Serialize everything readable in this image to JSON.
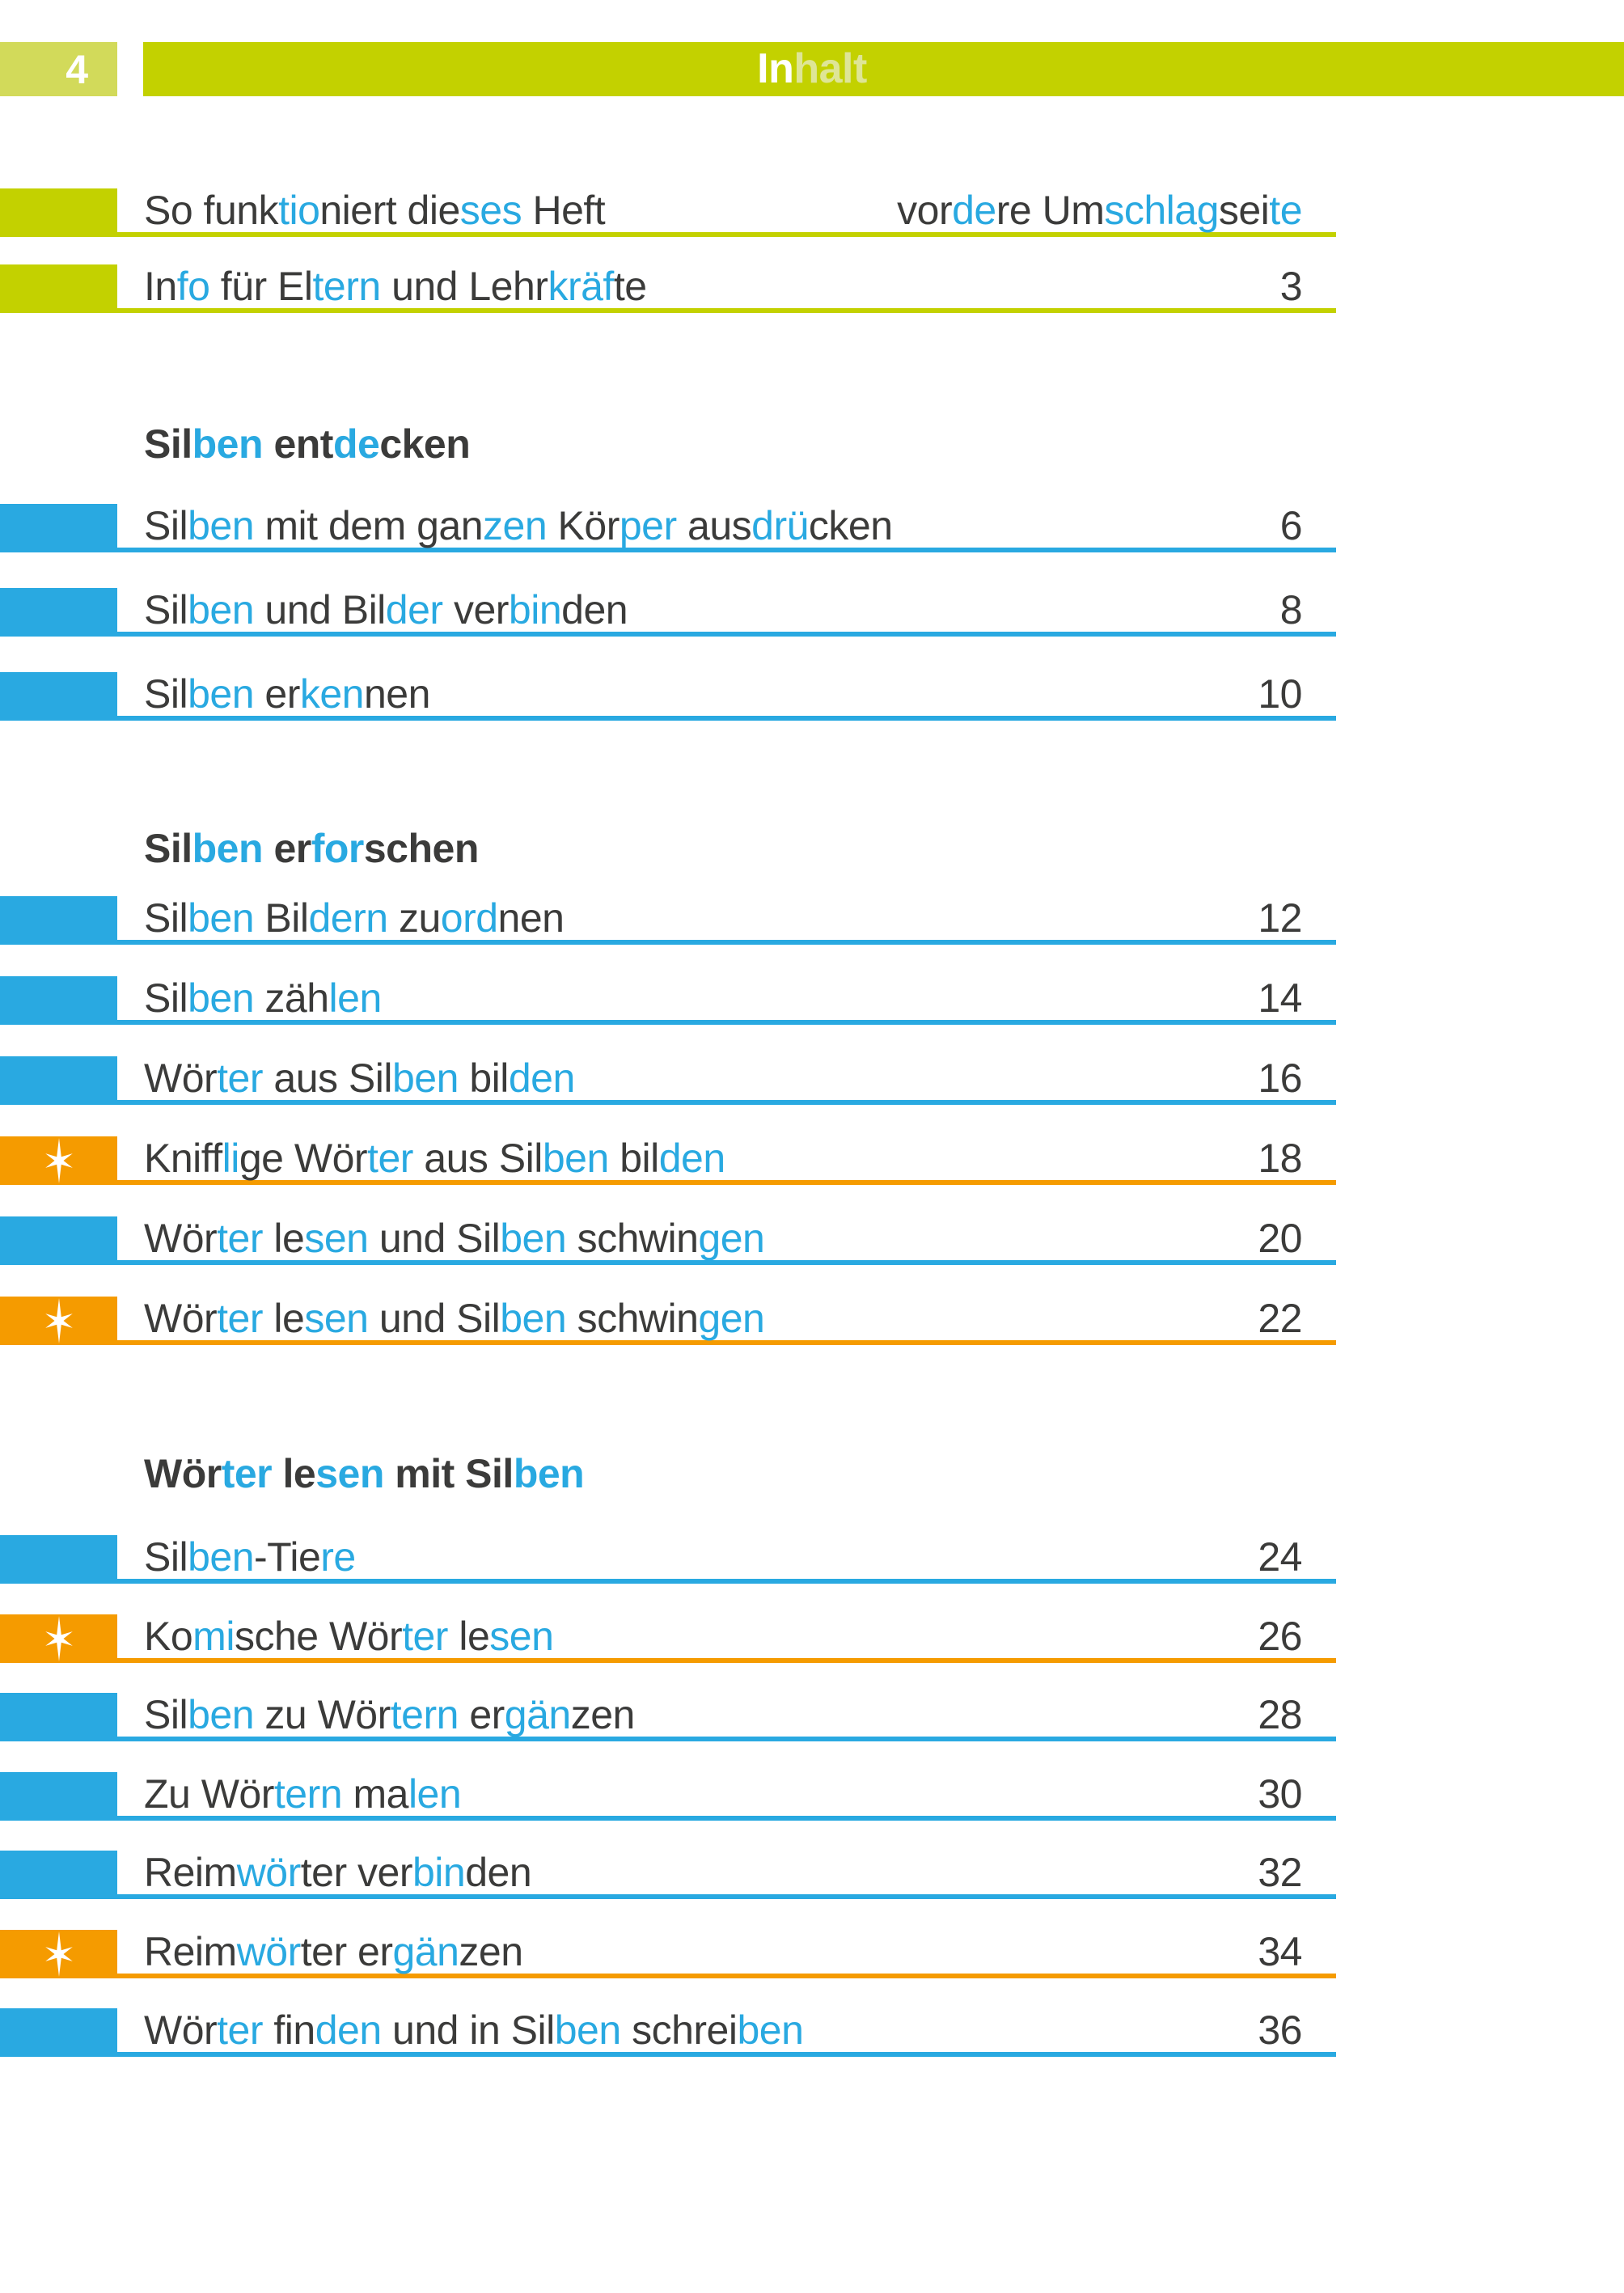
{
  "page": {
    "number": "4"
  },
  "header": {
    "title": [
      {
        "t": "In",
        "c": "white"
      },
      {
        "t": "halt",
        "c": "pale"
      }
    ]
  },
  "colors": {
    "green": "#c3d100",
    "green_light": "#d2da5a",
    "green_pale": "#dee596",
    "blue": "#29a9e1",
    "orange": "#f59b00",
    "dark": "#3b3b3a"
  },
  "icons": {
    "star": "six-point-sparkle-star"
  },
  "toc": {
    "intro_rows": [
      {
        "tab": "green",
        "star": false,
        "title": [
          {
            "t": "So funk",
            "c": "d"
          },
          {
            "t": "tio",
            "c": "b"
          },
          {
            "t": "niert die",
            "c": "d"
          },
          {
            "t": "ses",
            "c": "b"
          },
          {
            "t": " Heft",
            "c": "d"
          }
        ],
        "page": [
          {
            "t": "vor",
            "c": "d"
          },
          {
            "t": "de",
            "c": "b"
          },
          {
            "t": "re Um",
            "c": "d"
          },
          {
            "t": "schlag",
            "c": "b"
          },
          {
            "t": "sei",
            "c": "d"
          },
          {
            "t": "te",
            "c": "b"
          }
        ]
      },
      {
        "tab": "green",
        "star": false,
        "title": [
          {
            "t": "In",
            "c": "d"
          },
          {
            "t": "fo",
            "c": "b"
          },
          {
            "t": " für El",
            "c": "d"
          },
          {
            "t": "tern",
            "c": "b"
          },
          {
            "t": " und Lehr",
            "c": "d"
          },
          {
            "t": "kräf",
            "c": "b"
          },
          {
            "t": "te",
            "c": "d"
          }
        ],
        "page": [
          {
            "t": "3",
            "c": "d"
          }
        ]
      }
    ],
    "sections": [
      {
        "heading": [
          {
            "t": "Sil",
            "c": "d"
          },
          {
            "t": "ben",
            "c": "b"
          },
          {
            "t": " ent",
            "c": "d"
          },
          {
            "t": "de",
            "c": "b"
          },
          {
            "t": "cken",
            "c": "d"
          }
        ],
        "rows": [
          {
            "tab": "blue",
            "star": false,
            "title": [
              {
                "t": "Sil",
                "c": "d"
              },
              {
                "t": "ben",
                "c": "b"
              },
              {
                "t": " mit dem gan",
                "c": "d"
              },
              {
                "t": "zen",
                "c": "b"
              },
              {
                "t": " Kör",
                "c": "d"
              },
              {
                "t": "per",
                "c": "b"
              },
              {
                "t": " aus",
                "c": "d"
              },
              {
                "t": "drü",
                "c": "b"
              },
              {
                "t": "cken",
                "c": "d"
              }
            ],
            "page": [
              {
                "t": "6",
                "c": "d"
              }
            ]
          },
          {
            "tab": "blue",
            "star": false,
            "title": [
              {
                "t": "Sil",
                "c": "d"
              },
              {
                "t": "ben",
                "c": "b"
              },
              {
                "t": " und Bil",
                "c": "d"
              },
              {
                "t": "der",
                "c": "b"
              },
              {
                "t": " ver",
                "c": "d"
              },
              {
                "t": "bin",
                "c": "b"
              },
              {
                "t": "den",
                "c": "d"
              }
            ],
            "page": [
              {
                "t": "8",
                "c": "d"
              }
            ]
          },
          {
            "tab": "blue",
            "star": false,
            "title": [
              {
                "t": "Sil",
                "c": "d"
              },
              {
                "t": "ben",
                "c": "b"
              },
              {
                "t": " er",
                "c": "d"
              },
              {
                "t": "ken",
                "c": "b"
              },
              {
                "t": "nen",
                "c": "d"
              }
            ],
            "page": [
              {
                "t": "10",
                "c": "d"
              }
            ]
          }
        ]
      },
      {
        "heading": [
          {
            "t": "Sil",
            "c": "d"
          },
          {
            "t": "ben",
            "c": "b"
          },
          {
            "t": " er",
            "c": "d"
          },
          {
            "t": "for",
            "c": "b"
          },
          {
            "t": "schen",
            "c": "d"
          }
        ],
        "rows": [
          {
            "tab": "blue",
            "star": false,
            "title": [
              {
                "t": "Sil",
                "c": "d"
              },
              {
                "t": "ben",
                "c": "b"
              },
              {
                "t": " Bil",
                "c": "d"
              },
              {
                "t": "dern",
                "c": "b"
              },
              {
                "t": " zu",
                "c": "d"
              },
              {
                "t": "ord",
                "c": "b"
              },
              {
                "t": "nen",
                "c": "d"
              }
            ],
            "page": [
              {
                "t": "12",
                "c": "d"
              }
            ]
          },
          {
            "tab": "blue",
            "star": false,
            "title": [
              {
                "t": "Sil",
                "c": "d"
              },
              {
                "t": "ben",
                "c": "b"
              },
              {
                "t": " zäh",
                "c": "d"
              },
              {
                "t": "len",
                "c": "b"
              }
            ],
            "page": [
              {
                "t": "14",
                "c": "d"
              }
            ]
          },
          {
            "tab": "blue",
            "star": false,
            "title": [
              {
                "t": "Wör",
                "c": "d"
              },
              {
                "t": "ter",
                "c": "b"
              },
              {
                "t": " aus Sil",
                "c": "d"
              },
              {
                "t": "ben",
                "c": "b"
              },
              {
                "t": " bil",
                "c": "d"
              },
              {
                "t": "den",
                "c": "b"
              }
            ],
            "page": [
              {
                "t": "16",
                "c": "d"
              }
            ]
          },
          {
            "tab": "orange",
            "star": true,
            "title": [
              {
                "t": "Kniff",
                "c": "d"
              },
              {
                "t": "li",
                "c": "b"
              },
              {
                "t": "ge Wör",
                "c": "d"
              },
              {
                "t": "ter",
                "c": "b"
              },
              {
                "t": " aus Sil",
                "c": "d"
              },
              {
                "t": "ben",
                "c": "b"
              },
              {
                "t": " bil",
                "c": "d"
              },
              {
                "t": "den",
                "c": "b"
              }
            ],
            "page": [
              {
                "t": "18",
                "c": "d"
              }
            ]
          },
          {
            "tab": "blue",
            "star": false,
            "title": [
              {
                "t": "Wör",
                "c": "d"
              },
              {
                "t": "ter",
                "c": "b"
              },
              {
                "t": " le",
                "c": "d"
              },
              {
                "t": "sen",
                "c": "b"
              },
              {
                "t": " und Sil",
                "c": "d"
              },
              {
                "t": "ben",
                "c": "b"
              },
              {
                "t": " schwin",
                "c": "d"
              },
              {
                "t": "gen",
                "c": "b"
              }
            ],
            "page": [
              {
                "t": "20",
                "c": "d"
              }
            ]
          },
          {
            "tab": "orange",
            "star": true,
            "title": [
              {
                "t": "Wör",
                "c": "d"
              },
              {
                "t": "ter",
                "c": "b"
              },
              {
                "t": " le",
                "c": "d"
              },
              {
                "t": "sen",
                "c": "b"
              },
              {
                "t": " und Sil",
                "c": "d"
              },
              {
                "t": "ben",
                "c": "b"
              },
              {
                "t": " schwin",
                "c": "d"
              },
              {
                "t": "gen",
                "c": "b"
              }
            ],
            "page": [
              {
                "t": "22",
                "c": "d"
              }
            ]
          }
        ]
      },
      {
        "heading": [
          {
            "t": "Wör",
            "c": "d"
          },
          {
            "t": "ter",
            "c": "b"
          },
          {
            "t": " le",
            "c": "d"
          },
          {
            "t": "sen",
            "c": "b"
          },
          {
            "t": " mit Sil",
            "c": "d"
          },
          {
            "t": "ben",
            "c": "b"
          }
        ],
        "rows": [
          {
            "tab": "blue",
            "star": false,
            "title": [
              {
                "t": "Sil",
                "c": "d"
              },
              {
                "t": "ben",
                "c": "b"
              },
              {
                "t": "-Tie",
                "c": "d"
              },
              {
                "t": "re",
                "c": "b"
              }
            ],
            "page": [
              {
                "t": "24",
                "c": "d"
              }
            ]
          },
          {
            "tab": "orange",
            "star": true,
            "title": [
              {
                "t": "Ko",
                "c": "d"
              },
              {
                "t": "mi",
                "c": "b"
              },
              {
                "t": "sche Wör",
                "c": "d"
              },
              {
                "t": "ter",
                "c": "b"
              },
              {
                "t": " le",
                "c": "d"
              },
              {
                "t": "sen",
                "c": "b"
              }
            ],
            "page": [
              {
                "t": "26",
                "c": "d"
              }
            ]
          },
          {
            "tab": "blue",
            "star": false,
            "title": [
              {
                "t": "Sil",
                "c": "d"
              },
              {
                "t": "ben",
                "c": "b"
              },
              {
                "t": " zu Wör",
                "c": "d"
              },
              {
                "t": "tern",
                "c": "b"
              },
              {
                "t": " er",
                "c": "d"
              },
              {
                "t": "gän",
                "c": "b"
              },
              {
                "t": "zen",
                "c": "d"
              }
            ],
            "page": [
              {
                "t": "28",
                "c": "d"
              }
            ]
          },
          {
            "tab": "blue",
            "star": false,
            "title": [
              {
                "t": "Zu Wör",
                "c": "d"
              },
              {
                "t": "tern",
                "c": "b"
              },
              {
                "t": " ma",
                "c": "d"
              },
              {
                "t": "len",
                "c": "b"
              }
            ],
            "page": [
              {
                "t": "30",
                "c": "d"
              }
            ]
          },
          {
            "tab": "blue",
            "star": false,
            "title": [
              {
                "t": "Reim",
                "c": "d"
              },
              {
                "t": "wör",
                "c": "b"
              },
              {
                "t": "ter ver",
                "c": "d"
              },
              {
                "t": "bin",
                "c": "b"
              },
              {
                "t": "den",
                "c": "d"
              }
            ],
            "page": [
              {
                "t": "32",
                "c": "d"
              }
            ]
          },
          {
            "tab": "orange",
            "star": true,
            "title": [
              {
                "t": "Reim",
                "c": "d"
              },
              {
                "t": "wör",
                "c": "b"
              },
              {
                "t": "ter er",
                "c": "d"
              },
              {
                "t": "gän",
                "c": "b"
              },
              {
                "t": "zen",
                "c": "d"
              }
            ],
            "page": [
              {
                "t": "34",
                "c": "d"
              }
            ]
          },
          {
            "tab": "blue",
            "star": false,
            "title": [
              {
                "t": "Wör",
                "c": "d"
              },
              {
                "t": "ter",
                "c": "b"
              },
              {
                "t": " fin",
                "c": "d"
              },
              {
                "t": "den",
                "c": "b"
              },
              {
                "t": " und in Sil",
                "c": "d"
              },
              {
                "t": "ben",
                "c": "b"
              },
              {
                "t": " schrei",
                "c": "d"
              },
              {
                "t": "ben",
                "c": "b"
              }
            ],
            "page": [
              {
                "t": "36",
                "c": "d"
              }
            ]
          }
        ]
      }
    ]
  }
}
